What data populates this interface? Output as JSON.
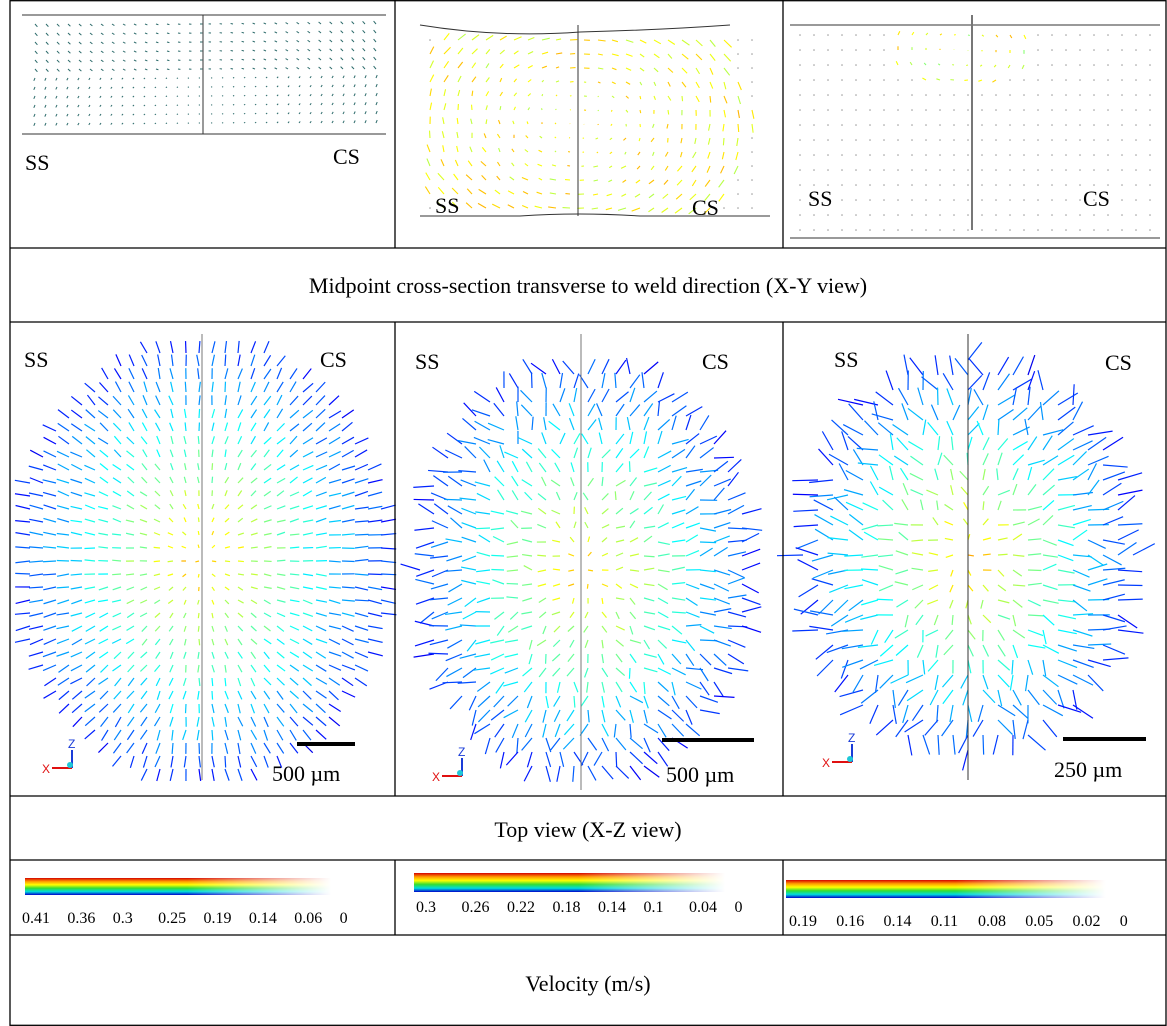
{
  "panels_xy": [
    {
      "left_label": "SS",
      "right_label": "CS"
    },
    {
      "left_label": "SS",
      "right_label": "CS"
    },
    {
      "left_label": "SS",
      "right_label": "CS"
    }
  ],
  "caption_xy": "Midpoint cross-section transverse to weld direction (X-Y view)",
  "panels_xz": [
    {
      "left_label": "SS",
      "right_label": "CS",
      "scale_bar": "500 µm",
      "axis_z": "Z",
      "axis_x": "X"
    },
    {
      "left_label": "SS",
      "right_label": "CS",
      "scale_bar": "500 µm",
      "axis_z": "Z",
      "axis_x": "X"
    },
    {
      "left_label": "SS",
      "right_label": "CS",
      "scale_bar": "250 µm",
      "axis_z": "Z",
      "axis_x": "X"
    }
  ],
  "caption_xz": "Top view (X-Z view)",
  "colorbars": [
    {
      "ticks": [
        "0.41",
        "0.36",
        "0.3",
        "0.25",
        "0.19",
        "0.14",
        "0.06",
        "0"
      ]
    },
    {
      "ticks": [
        "0.3",
        "0.26",
        "0.22",
        "0.18",
        "0.14",
        "0.1",
        "0.04",
        "0"
      ]
    },
    {
      "ticks": [
        "0.19",
        "0.16",
        "0.14",
        "0.11",
        "0.08",
        "0.05",
        "0.02",
        "0"
      ]
    }
  ],
  "caption_velocity": "Velocity (m/s)"
}
